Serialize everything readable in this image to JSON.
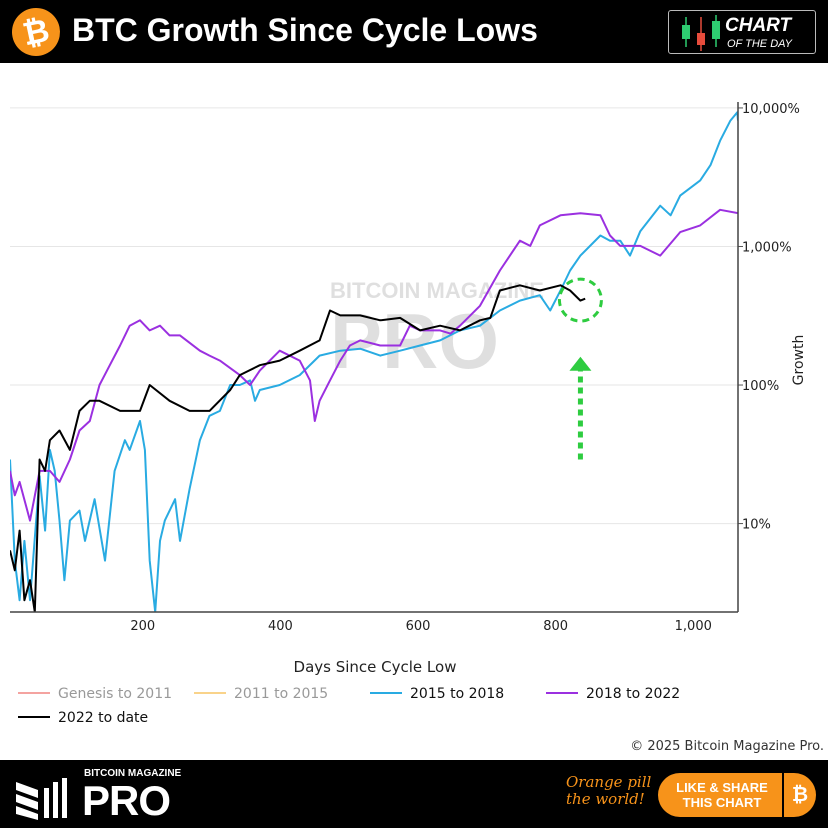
{
  "header": {
    "title": "BTC Growth Since Cycle Lows",
    "badge_line1": "CHART",
    "badge_line2": "OF THE DAY"
  },
  "footer": {
    "brand_small": "BITCOIN MAGAZINE",
    "brand_big": "PRO",
    "slogan_line1": "Orange pill",
    "slogan_line2": "the world!",
    "share_line1": "LIKE & SHARE",
    "share_line2": "THIS CHART"
  },
  "copyright": "© 2025 Bitcoin Magazine Pro.",
  "colors": {
    "brand": "#f7931a",
    "annotation": "#2ecc40"
  },
  "chart_data": {
    "type": "line",
    "xlabel": "Days Since Cycle Low",
    "ylabel": "Growth",
    "xlim": [
      7,
      1065
    ],
    "ylim": [
      2.3,
      10500
    ],
    "yscale": "log",
    "grid": true,
    "legend_position": "bottom",
    "x_ticks": [
      {
        "v": 200,
        "label": "200"
      },
      {
        "v": 400,
        "label": "400"
      },
      {
        "v": 600,
        "label": "600"
      },
      {
        "v": 800,
        "label": "800"
      },
      {
        "v": 1000,
        "label": "1,000"
      }
    ],
    "y_ticks": [
      {
        "v": 10,
        "label": "10%"
      },
      {
        "v": 100,
        "label": "100%"
      },
      {
        "v": 1000,
        "label": "1,000%"
      },
      {
        "v": 10000,
        "label": "10,000%"
      }
    ],
    "series": [
      {
        "name": "Genesis to 2011",
        "color": "#f4a3a0",
        "legend_color": "#999",
        "x": [],
        "y": []
      },
      {
        "name": "2011 to 2015",
        "color": "#f9d38a",
        "legend_color": "#999",
        "x": [],
        "y": []
      },
      {
        "name": "2015 to 2018",
        "color": "#29abe2",
        "legend_color": "#111",
        "x": [
          7,
          14,
          21,
          28,
          36,
          50,
          58,
          65,
          72,
          79,
          86,
          94,
          108,
          116,
          130,
          145,
          159,
          174,
          181,
          196,
          203,
          210,
          218,
          225,
          232,
          247,
          254,
          268,
          283,
          297,
          312,
          327,
          341,
          356,
          363,
          370,
          399,
          428,
          457,
          487,
          516,
          545,
          574,
          603,
          632,
          661,
          690,
          719,
          748,
          777,
          792,
          807,
          821,
          836,
          865,
          879,
          894,
          908,
          923,
          952,
          967,
          981,
          1010,
          1025,
          1039,
          1054,
          1064,
          1065
        ],
        "y": [
          29,
          5.4,
          2.8,
          7.5,
          2.8,
          22,
          8.9,
          34,
          24,
          10.5,
          3.9,
          10.5,
          12.4,
          7.5,
          15,
          5.4,
          24,
          40,
          34,
          55,
          34,
          5.4,
          2.3,
          7.5,
          10.5,
          15,
          7.5,
          17.8,
          40,
          60,
          65,
          100,
          100,
          108,
          77,
          92,
          100,
          118,
          163,
          177,
          183,
          163,
          177,
          193,
          210,
          248,
          268,
          345,
          407,
          445,
          345,
          481,
          671,
          860,
          1200,
          1100,
          1100,
          860,
          1290,
          1970,
          1680,
          2330,
          3000,
          3870,
          5800,
          8100,
          9300,
          8100
        ]
      },
      {
        "name": "2018 to 2022",
        "color": "#9b30e0",
        "legend_color": "#111",
        "x": [
          7,
          14,
          21,
          36,
          50,
          65,
          79,
          94,
          108,
          123,
          137,
          152,
          167,
          181,
          196,
          210,
          225,
          239,
          254,
          283,
          297,
          312,
          341,
          356,
          370,
          399,
          428,
          443,
          450,
          457,
          472,
          487,
          501,
          516,
          545,
          574,
          588,
          603,
          632,
          647,
          661,
          690,
          719,
          748,
          763,
          777,
          807,
          836,
          865,
          879,
          894,
          923,
          952,
          981,
          1010,
          1039,
          1065
        ],
        "y": [
          24,
          16,
          20,
          10.5,
          24,
          24,
          20,
          29,
          47,
          55,
          100,
          139,
          193,
          268,
          293,
          248,
          268,
          228,
          228,
          177,
          163,
          150,
          118,
          100,
          127,
          177,
          150,
          108,
          55,
          77,
          108,
          150,
          193,
          210,
          193,
          193,
          268,
          248,
          248,
          235,
          268,
          373,
          671,
          1100,
          1010,
          1420,
          1680,
          1740,
          1680,
          1200,
          1010,
          1010,
          860,
          1270,
          1420,
          1840,
          1740
        ]
      },
      {
        "name": "2022 to date",
        "color": "#000000",
        "legend_color": "#111",
        "x": [
          7,
          14,
          21,
          28,
          36,
          43,
          50,
          58,
          65,
          79,
          94,
          108,
          123,
          137,
          167,
          196,
          210,
          239,
          268,
          297,
          327,
          341,
          370,
          399,
          428,
          457,
          472,
          487,
          516,
          545,
          574,
          603,
          632,
          661,
          690,
          705,
          719,
          748,
          777,
          807,
          821,
          836,
          843
        ],
        "y": [
          6.4,
          4.6,
          8.9,
          2.8,
          3.9,
          2.3,
          29,
          24,
          40,
          47,
          34,
          65,
          77,
          77,
          65,
          65,
          100,
          77,
          65,
          65,
          92,
          118,
          139,
          150,
          177,
          210,
          345,
          318,
          318,
          293,
          305,
          248,
          268,
          248,
          293,
          305,
          481,
          525,
          481,
          525,
          481,
          407,
          420
        ]
      }
    ],
    "annotations": [
      {
        "type": "dashed-circle",
        "x": 836,
        "y": 410,
        "color": "#2ecc40"
      },
      {
        "type": "dotted-arrow-up",
        "x": 836,
        "y_from": 29,
        "y_to": 160,
        "color": "#2ecc40"
      }
    ]
  }
}
